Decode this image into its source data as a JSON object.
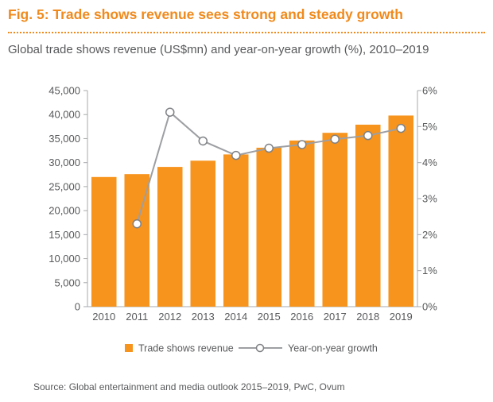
{
  "header": {
    "fig_title": "Fig. 5: Trade shows revenue sees strong and steady growth",
    "subtitle": "Global trade shows revenue (US$mn) and year-on-year growth (%), 2010–2019",
    "source": "Source: Global entertainment and media outlook 2015–2019, PwC, Ovum"
  },
  "chart_data": {
    "type": "bar",
    "title": "Fig. 5: Trade shows revenue sees strong and steady growth",
    "subtitle": "Global trade shows revenue (US$mn) and year-on-year growth (%), 2010–2019",
    "categories": [
      "2010",
      "2011",
      "2012",
      "2013",
      "2014",
      "2015",
      "2016",
      "2017",
      "2018",
      "2019"
    ],
    "series": [
      {
        "name": "Trade shows revenue",
        "type": "bar",
        "axis": "left",
        "color": "#f7941d",
        "values": [
          27000,
          27600,
          29100,
          30400,
          31700,
          33100,
          34600,
          36200,
          37900,
          39800
        ]
      },
      {
        "name": "Year-on-year growth",
        "type": "line",
        "axis": "right",
        "color": "#9d9fa2",
        "values": [
          null,
          2.3,
          5.4,
          4.6,
          4.2,
          4.4,
          4.5,
          4.65,
          4.75,
          4.95
        ]
      }
    ],
    "left_axis": {
      "ylim": [
        0,
        45000
      ],
      "ticks": [
        0,
        5000,
        10000,
        15000,
        20000,
        25000,
        30000,
        35000,
        40000,
        45000
      ],
      "tick_labels": [
        "0",
        "5,000",
        "10,000",
        "15,000",
        "20,000",
        "25,000",
        "30,000",
        "35,000",
        "40,000",
        "45,000"
      ]
    },
    "right_axis": {
      "ylim": [
        0,
        6
      ],
      "ticks": [
        0,
        1,
        2,
        3,
        4,
        5,
        6
      ],
      "tick_labels": [
        "0%",
        "1%",
        "2%",
        "3%",
        "4%",
        "5%",
        "6%"
      ]
    },
    "grid": false,
    "legend_position": "bottom"
  }
}
